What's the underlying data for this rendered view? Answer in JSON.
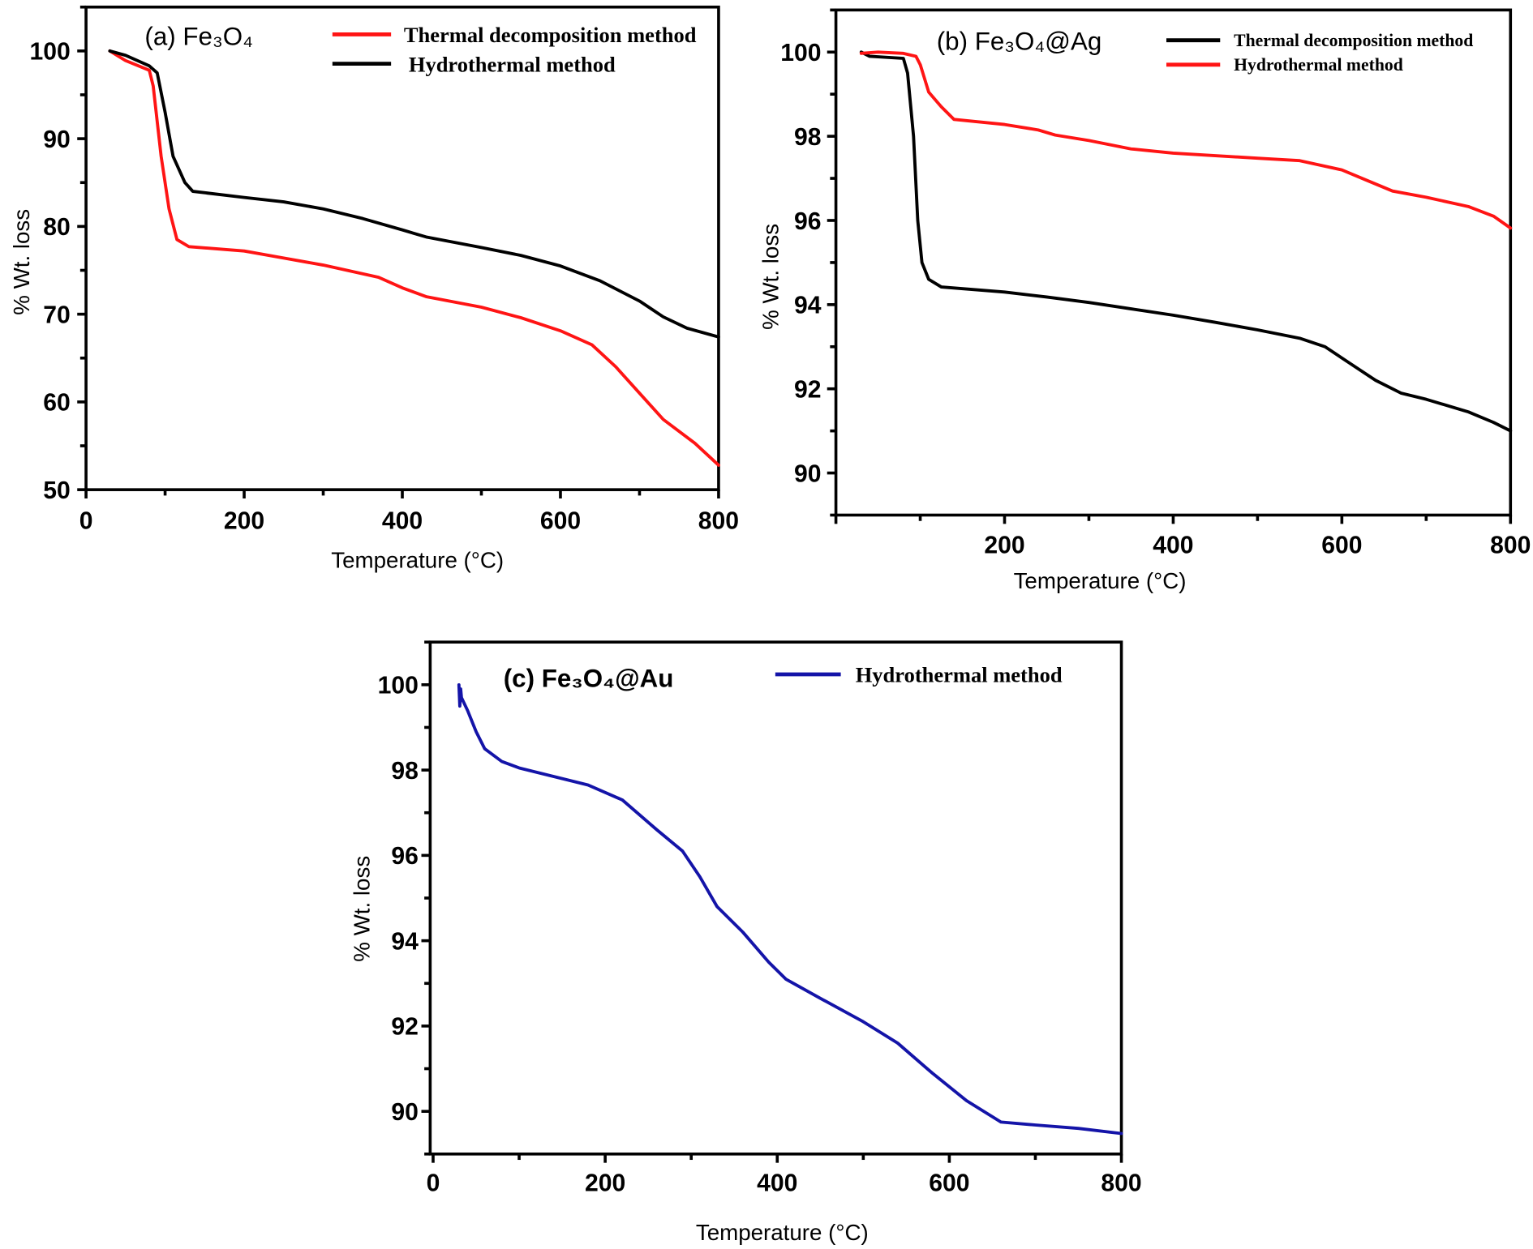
{
  "colors": {
    "red": "#ff1414",
    "black": "#000000",
    "blue": "#1414a8"
  },
  "chart_data": [
    {
      "type": "line",
      "title": "(a) Fe₃O₄",
      "xlabel": "Temperature   (°C)",
      "ylabel": "% Wt. loss",
      "xlim": [
        0,
        800
      ],
      "ylim": [
        50,
        105
      ],
      "xticks": [
        0,
        200,
        400,
        600,
        800
      ],
      "yticks": [
        50,
        60,
        70,
        80,
        90,
        100
      ],
      "grid": false,
      "legend_position": "top-right",
      "series": [
        {
          "name": "Thermal decomposition method",
          "color": "#ff1414",
          "x": [
            30,
            50,
            80,
            85,
            95,
            105,
            115,
            130,
            200,
            250,
            300,
            370,
            400,
            430,
            500,
            550,
            600,
            640,
            670,
            700,
            730,
            770,
            800
          ],
          "y": [
            100,
            98.9,
            97.8,
            96,
            88,
            82,
            78.5,
            77.7,
            77.2,
            76.4,
            75.6,
            74.2,
            73,
            72,
            70.8,
            69.6,
            68.1,
            66.5,
            64,
            61,
            58,
            55.3,
            52.8
          ]
        },
        {
          "name": "Hydrothermal method",
          "color": "#000000",
          "x": [
            30,
            50,
            80,
            90,
            100,
            110,
            125,
            135,
            200,
            250,
            300,
            350,
            400,
            430,
            500,
            550,
            600,
            650,
            700,
            730,
            760,
            800
          ],
          "y": [
            100,
            99.5,
            98.3,
            97.5,
            93,
            88,
            85,
            84,
            83.3,
            82.8,
            82,
            80.9,
            79.6,
            78.8,
            77.6,
            76.7,
            75.5,
            73.8,
            71.5,
            69.7,
            68.4,
            67.4
          ]
        }
      ]
    },
    {
      "type": "line",
      "title": "(b) Fe₃O₄@Ag",
      "xlabel": "Temperature   (°C)",
      "ylabel": "% Wt. loss",
      "xlim": [
        0,
        800
      ],
      "ylim": [
        89,
        101
      ],
      "xticks": [
        200,
        400,
        600,
        800
      ],
      "yticks": [
        90,
        92,
        94,
        96,
        98,
        100
      ],
      "grid": false,
      "legend_position": "top-right",
      "series": [
        {
          "name": "Thermal decomposition method",
          "color": "#000000",
          "x": [
            30,
            40,
            80,
            85,
            92,
            97,
            102,
            110,
            125,
            200,
            250,
            300,
            350,
            400,
            450,
            500,
            550,
            580,
            610,
            640,
            670,
            700,
            750,
            780,
            800
          ],
          "y": [
            100,
            99.9,
            99.85,
            99.5,
            98,
            96,
            95,
            94.6,
            94.42,
            94.3,
            94.18,
            94.05,
            93.9,
            93.75,
            93.58,
            93.4,
            93.2,
            93,
            92.6,
            92.2,
            91.9,
            91.75,
            91.45,
            91.2,
            91.0
          ]
        },
        {
          "name": "Hydrothermal method",
          "color": "#ff1414",
          "x": [
            30,
            50,
            80,
            95,
            100,
            110,
            125,
            140,
            200,
            240,
            260,
            300,
            350,
            400,
            500,
            550,
            600,
            630,
            660,
            700,
            750,
            780,
            800
          ],
          "y": [
            99.97,
            100,
            99.97,
            99.9,
            99.7,
            99.05,
            98.7,
            98.4,
            98.28,
            98.15,
            98.03,
            97.9,
            97.7,
            97.6,
            97.48,
            97.42,
            97.2,
            96.95,
            96.7,
            96.55,
            96.33,
            96.1,
            95.82
          ]
        }
      ]
    },
    {
      "type": "line",
      "title": "(c) Fe₃O₄@Au",
      "xlabel": "Temperature   (°C)",
      "ylabel": "% Wt. loss",
      "xlim": [
        0,
        800
      ],
      "ylim": [
        89,
        101
      ],
      "xticks": [
        0,
        200,
        400,
        600,
        800
      ],
      "yticks": [
        90,
        92,
        94,
        96,
        98,
        100
      ],
      "grid": false,
      "legend_position": "top-right",
      "series": [
        {
          "name": "Hydrothermal method",
          "color": "#1414a8",
          "x": [
            30,
            31,
            32,
            33,
            40,
            50,
            60,
            80,
            100,
            150,
            180,
            220,
            260,
            290,
            310,
            330,
            360,
            390,
            410,
            450,
            500,
            540,
            580,
            620,
            660,
            700,
            750,
            800
          ],
          "y": [
            100,
            99.5,
            99.9,
            99.7,
            99.4,
            98.9,
            98.5,
            98.2,
            98.05,
            97.8,
            97.65,
            97.3,
            96.6,
            96.1,
            95.5,
            94.8,
            94.2,
            93.5,
            93.1,
            92.65,
            92.1,
            91.6,
            90.9,
            90.25,
            89.75,
            89.68,
            89.6,
            89.48
          ]
        }
      ]
    }
  ]
}
